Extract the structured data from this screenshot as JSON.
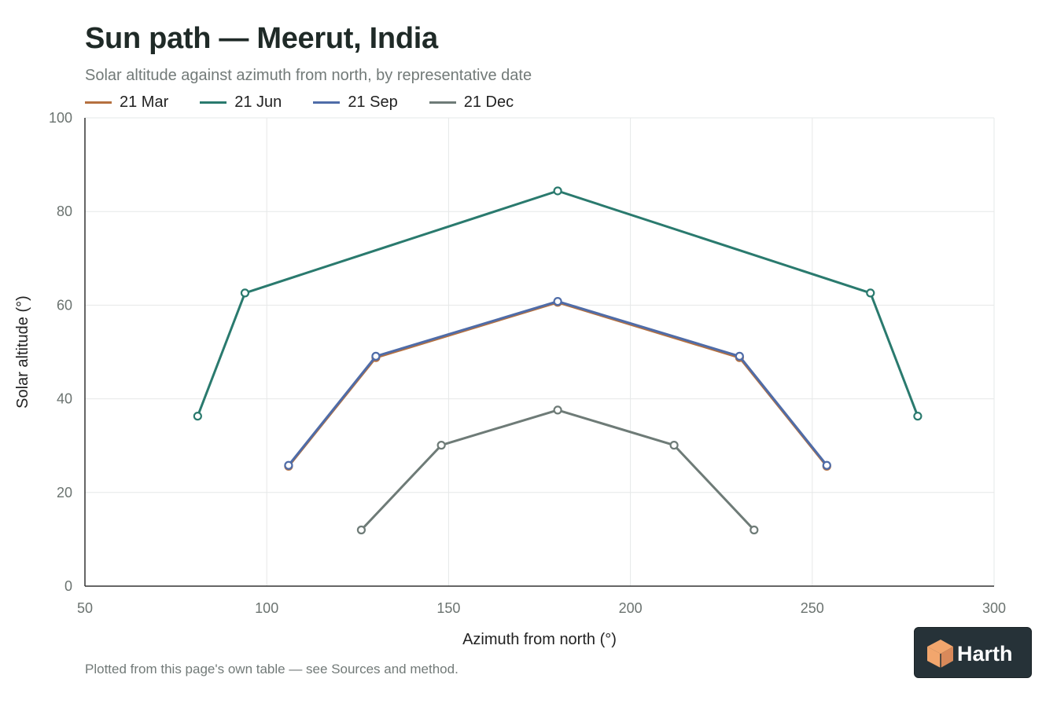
{
  "title": "Sun path — Meerut, India",
  "subtitle": "Solar altitude against azimuth from north, by representative date",
  "footnote": "Plotted from this page's own table — see Sources and method.",
  "logo": {
    "text": "Harth",
    "accent": "#f2a66d"
  },
  "chart_data": {
    "type": "line",
    "xlabel": "Azimuth from north (°)",
    "ylabel": "Solar altitude (°)",
    "xlim": [
      50,
      300
    ],
    "ylim": [
      0,
      100
    ],
    "xticks": [
      50,
      100,
      150,
      200,
      250,
      300
    ],
    "yticks": [
      0,
      20,
      40,
      60,
      80,
      100
    ],
    "grid": true,
    "legend_position": "top-left",
    "series": [
      {
        "name": "21 Mar",
        "color": "#b5703f",
        "points": [
          [
            106,
            25.6
          ],
          [
            130,
            48.8
          ],
          [
            180,
            60.6
          ],
          [
            230,
            48.8
          ],
          [
            254,
            25.6
          ]
        ]
      },
      {
        "name": "21 Jun",
        "color": "#2a7a6e",
        "points": [
          [
            81,
            36.3
          ],
          [
            94,
            62.6
          ],
          [
            180,
            84.4
          ],
          [
            266,
            62.6
          ],
          [
            279,
            36.3
          ]
        ]
      },
      {
        "name": "21 Sep",
        "color": "#4f6ca8",
        "points": [
          [
            106,
            25.8
          ],
          [
            130,
            49.1
          ],
          [
            180,
            60.8
          ],
          [
            230,
            49.1
          ],
          [
            254,
            25.8
          ]
        ]
      },
      {
        "name": "21 Dec",
        "color": "#6e7b77",
        "points": [
          [
            126,
            12.0
          ],
          [
            148,
            30.1
          ],
          [
            180,
            37.6
          ],
          [
            212,
            30.1
          ],
          [
            234,
            12.0
          ]
        ]
      }
    ]
  }
}
